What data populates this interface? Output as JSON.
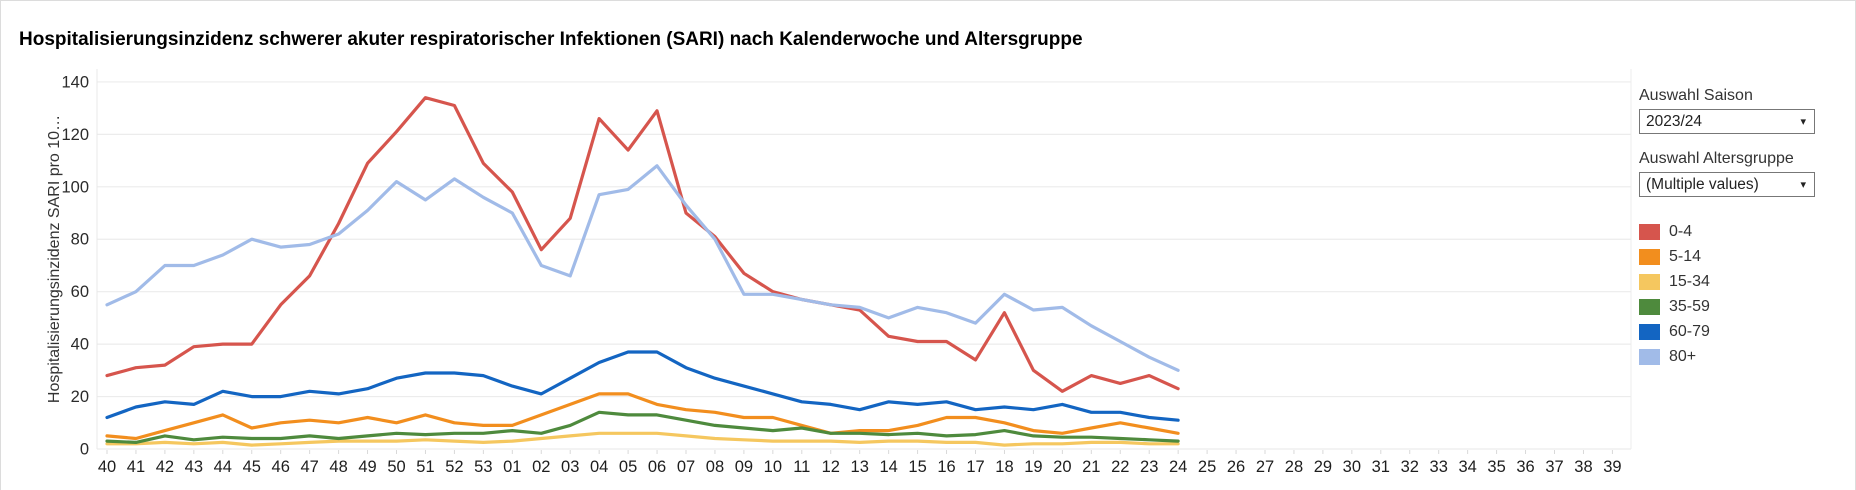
{
  "window": {
    "title": "Hospitalisierungsinzidenz schwerer akuter respiratorischer Infektionen (SARI) nach Kalenderwoche und Altersgruppe"
  },
  "controls": {
    "season_label": "Auswahl Saison",
    "season_value": "2023/24",
    "age_label": "Auswahl Altersgruppe",
    "age_value": "(Multiple values)",
    "dropdown_arrow": "▾"
  },
  "legend": {
    "items": [
      {
        "label": "0-4",
        "color": "#d6554d"
      },
      {
        "label": "5-14",
        "color": "#f28e1e"
      },
      {
        "label": "15-34",
        "color": "#f5c75f"
      },
      {
        "label": "35-59",
        "color": "#4e8a3d"
      },
      {
        "label": "60-79",
        "color": "#1365c2"
      },
      {
        "label": "80+",
        "color": "#a1bbe8"
      }
    ]
  },
  "chart_data": {
    "type": "line",
    "title": "Hospitalisierungsinzidenz schwerer akuter respiratorischer Infektionen (SARI) nach Kalenderwoche und Altersgruppe",
    "xlabel": "",
    "ylabel": "Hospitalisierungsinzidenz SARI pro 10…",
    "ylim": [
      0,
      140
    ],
    "ytick_step": 20,
    "grid": "horizontal",
    "legend_position": "right",
    "x_ticks": [
      "40",
      "41",
      "42",
      "43",
      "44",
      "45",
      "46",
      "47",
      "48",
      "49",
      "50",
      "51",
      "52",
      "53",
      "01",
      "02",
      "03",
      "04",
      "05",
      "06",
      "07",
      "08",
      "09",
      "10",
      "11",
      "12",
      "13",
      "14",
      "15",
      "16",
      "17",
      "18",
      "19",
      "20",
      "21",
      "22",
      "23",
      "24",
      "25",
      "26",
      "27",
      "28",
      "29",
      "30",
      "31",
      "32",
      "33",
      "34",
      "35",
      "36",
      "37",
      "38",
      "39"
    ],
    "x": [
      "40",
      "41",
      "42",
      "43",
      "44",
      "45",
      "46",
      "47",
      "48",
      "49",
      "50",
      "51",
      "52",
      "53",
      "01",
      "02",
      "03",
      "04",
      "05",
      "06",
      "07",
      "08",
      "09",
      "10",
      "11",
      "12",
      "13",
      "14",
      "15",
      "16",
      "17",
      "18",
      "19",
      "20",
      "21",
      "22",
      "23",
      "24"
    ],
    "series": [
      {
        "name": "0-4",
        "color": "#d6554d",
        "values": [
          28,
          31,
          32,
          39,
          40,
          40,
          55,
          66,
          86,
          109,
          121,
          134,
          131,
          109,
          98,
          76,
          88,
          126,
          114,
          129,
          90,
          81,
          67,
          60,
          57,
          55,
          53,
          43,
          41,
          41,
          34,
          52,
          30,
          22,
          28,
          25,
          28,
          23
        ]
      },
      {
        "name": "5-14",
        "color": "#f28e1e",
        "values": [
          5,
          4,
          7,
          10,
          13,
          8,
          10,
          11,
          10,
          12,
          10,
          13,
          10,
          9,
          9,
          13,
          17,
          21,
          21,
          17,
          15,
          14,
          12,
          12,
          9,
          6,
          7,
          7,
          9,
          12,
          12,
          10,
          7,
          6,
          8,
          10,
          8,
          6
        ]
      },
      {
        "name": "15-34",
        "color": "#f5c75f",
        "values": [
          2,
          2,
          2.5,
          2,
          2.5,
          1.5,
          2,
          2.5,
          3,
          3,
          3,
          3.5,
          3,
          2.5,
          3,
          4,
          5,
          6,
          6,
          6,
          5,
          4,
          3.5,
          3,
          3,
          3,
          2.5,
          3,
          3,
          2.5,
          2.5,
          1.5,
          2,
          2,
          2.5,
          2.5,
          2,
          2
        ]
      },
      {
        "name": "35-59",
        "color": "#4e8a3d",
        "values": [
          3,
          2.5,
          5,
          3.5,
          4.5,
          4,
          4,
          5,
          4,
          5,
          6,
          5.5,
          6,
          6,
          7,
          6,
          9,
          14,
          13,
          13,
          11,
          9,
          8,
          7,
          8,
          6,
          6,
          5.5,
          6,
          5,
          5.5,
          7,
          5,
          4.5,
          4.5,
          4,
          3.5,
          3
        ]
      },
      {
        "name": "60-79",
        "color": "#1365c2",
        "values": [
          12,
          16,
          18,
          17,
          22,
          20,
          20,
          22,
          21,
          23,
          27,
          29,
          29,
          28,
          24,
          21,
          27,
          33,
          37,
          37,
          31,
          27,
          24,
          21,
          18,
          17,
          15,
          18,
          17,
          18,
          15,
          16,
          15,
          17,
          14,
          14,
          12,
          11
        ]
      },
      {
        "name": "80+",
        "color": "#a1bbe8",
        "values": [
          55,
          60,
          70,
          70,
          74,
          80,
          77,
          78,
          82,
          91,
          102,
          95,
          103,
          96,
          90,
          70,
          66,
          97,
          99,
          108,
          93,
          80,
          59,
          59,
          57,
          55,
          54,
          50,
          54,
          52,
          48,
          59,
          53,
          54,
          47,
          41,
          35,
          30
        ]
      }
    ]
  }
}
